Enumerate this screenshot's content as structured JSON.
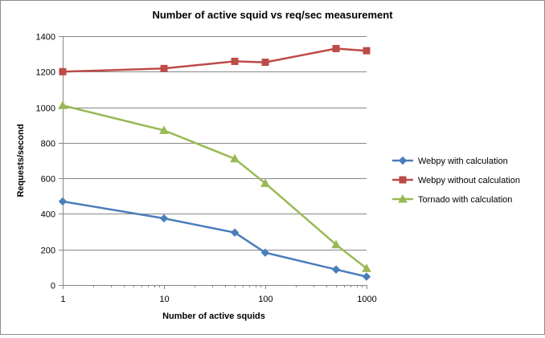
{
  "chart_data": {
    "type": "line",
    "title": "Number of active squid vs req/sec measurement",
    "xlabel": "Number of active squids",
    "ylabel": "Requests/second",
    "xscale": "log10",
    "xlim": [
      1,
      1000
    ],
    "ylim": [
      0,
      1400
    ],
    "xticks": [
      "1",
      "10",
      "100",
      "1000"
    ],
    "yticks": [
      "0",
      "200",
      "400",
      "600",
      "800",
      "1000",
      "1200",
      "1400"
    ],
    "grid": "horizontal",
    "legend_position": "right",
    "x": [
      1,
      10,
      50,
      100,
      500,
      1000
    ],
    "series": [
      {
        "name": "Webpy with calculation",
        "color": "#4a7ebb",
        "marker": "diamond",
        "values": [
          470,
          375,
          295,
          182,
          87,
          47
        ]
      },
      {
        "name": "Webpy without calculation",
        "color": "#be4b48",
        "marker": "square",
        "values": [
          1200,
          1218,
          1258,
          1253,
          1330,
          1318
        ]
      },
      {
        "name": "Tornado with calculation",
        "color": "#98b954",
        "marker": "triangle",
        "values": [
          1010,
          870,
          710,
          572,
          227,
          93
        ]
      }
    ]
  }
}
